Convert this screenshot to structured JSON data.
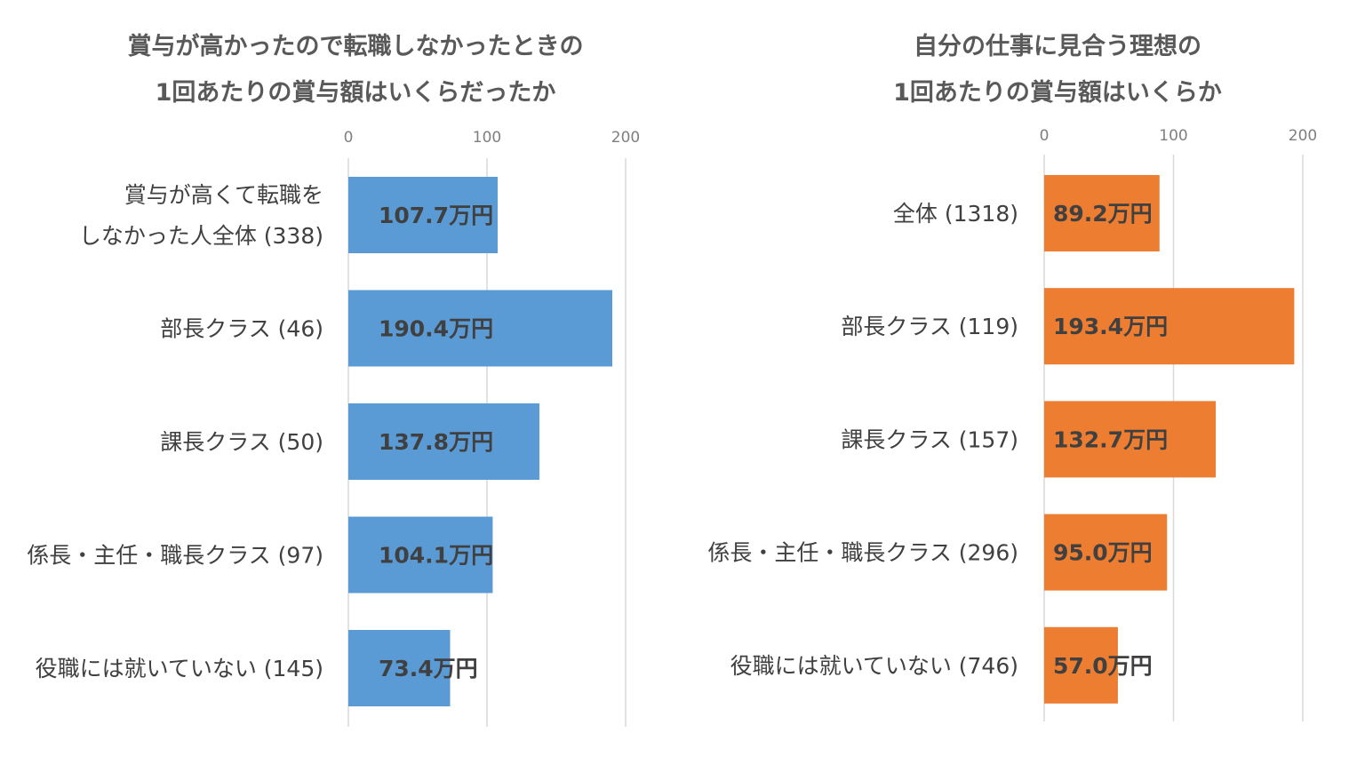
{
  "chart_data": [
    {
      "type": "bar",
      "orientation": "horizontal",
      "title_lines": [
        "賞与が高かったので転職しなかったときの",
        "1回あたりの賞与額はいくらだったか"
      ],
      "categories": [
        [
          "賞与が高くて転職を",
          "しなかった人全体 (338)"
        ],
        [
          "部長クラス (46)"
        ],
        [
          "課長クラス (50)"
        ],
        [
          "係長・主任・職長クラス (97)"
        ],
        [
          "役職には就いていない (145)"
        ]
      ],
      "values": [
        107.7,
        190.4,
        137.8,
        104.1,
        73.4
      ],
      "data_labels": [
        "107.7万円",
        "190.4万円",
        "137.8万円",
        "104.1万円",
        "73.4万円"
      ],
      "xlim": [
        0,
        200
      ],
      "ticks": [
        0,
        100,
        200
      ],
      "tick_labels": [
        "0",
        "100",
        "200"
      ],
      "grid": true,
      "axis_position": "top",
      "color": "#5b9bd5"
    },
    {
      "type": "bar",
      "orientation": "horizontal",
      "title_lines": [
        "自分の仕事に見合う理想の",
        "1回あたりの賞与額はいくらか"
      ],
      "categories": [
        [
          "全体 (1318)"
        ],
        [
          "部長クラス (119)"
        ],
        [
          "課長クラス (157)"
        ],
        [
          "係長・主任・職長クラス (296)"
        ],
        [
          "役職には就いていない (746)"
        ]
      ],
      "values": [
        89.2,
        193.4,
        132.7,
        95.0,
        57.0
      ],
      "data_labels": [
        "89.2万円",
        "193.4万円",
        "132.7万円",
        "95.0万円",
        "57.0万円"
      ],
      "xlim": [
        0,
        200
      ],
      "ticks": [
        0,
        100,
        200
      ],
      "tick_labels": [
        "0",
        "100",
        "200"
      ],
      "grid": true,
      "axis_position": "top",
      "color": "#ed7d31"
    }
  ]
}
